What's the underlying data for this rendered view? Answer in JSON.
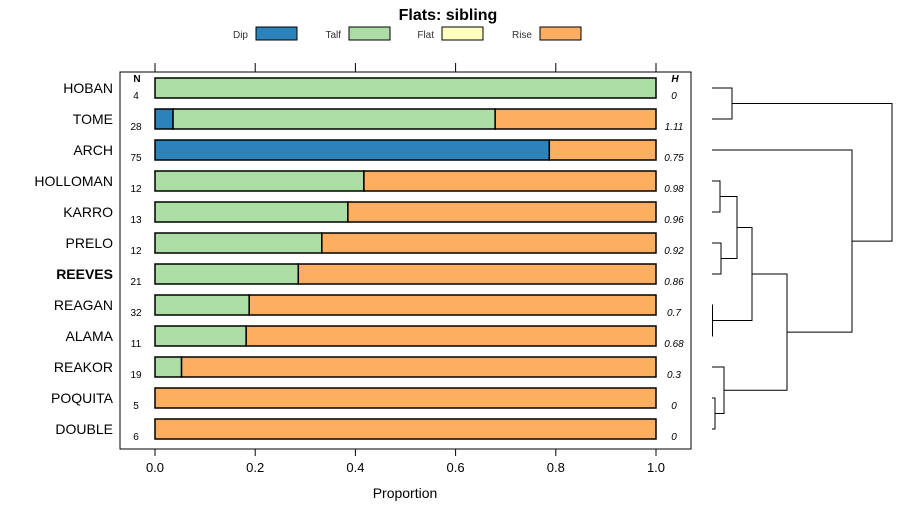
{
  "chart_data": {
    "type": "bar",
    "stacked": true,
    "orientation": "horizontal",
    "title": "Flats: sibling",
    "xlabel": "Proportion",
    "xlim": [
      0,
      1
    ],
    "xticks": [
      "0.0",
      "0.2",
      "0.4",
      "0.6",
      "0.8",
      "1.0"
    ],
    "n_header": "N",
    "h_header": "H",
    "legend": [
      {
        "name": "Dip",
        "color": "#2b83ba"
      },
      {
        "name": "Talf",
        "color": "#abdda4"
      },
      {
        "name": "Flat",
        "color": "#ffffbf"
      },
      {
        "name": "Rise",
        "color": "#fdae61"
      }
    ],
    "rows": [
      {
        "label": "HOBAN",
        "n": "4",
        "h": "0",
        "bold": false,
        "values": [
          0,
          1,
          0,
          0
        ]
      },
      {
        "label": "TOME",
        "n": "28",
        "h": "1.11",
        "bold": false,
        "values": [
          0.036,
          0.643,
          0,
          0.321
        ]
      },
      {
        "label": "ARCH",
        "n": "75",
        "h": "0.75",
        "bold": false,
        "values": [
          0.787,
          0,
          0,
          0.213
        ]
      },
      {
        "label": "HOLLOMAN",
        "n": "12",
        "h": "0.98",
        "bold": false,
        "values": [
          0,
          0.417,
          0,
          0.583
        ]
      },
      {
        "label": "KARRO",
        "n": "13",
        "h": "0.96",
        "bold": false,
        "values": [
          0,
          0.385,
          0,
          0.615
        ]
      },
      {
        "label": "PRELO",
        "n": "12",
        "h": "0.92",
        "bold": false,
        "values": [
          0,
          0.333,
          0,
          0.667
        ]
      },
      {
        "label": "REEVES",
        "n": "21",
        "h": "0.86",
        "bold": true,
        "values": [
          0,
          0.286,
          0,
          0.714
        ]
      },
      {
        "label": "REAGAN",
        "n": "32",
        "h": "0.7",
        "bold": false,
        "values": [
          0,
          0.188,
          0,
          0.812
        ]
      },
      {
        "label": "ALAMA",
        "n": "11",
        "h": "0.68",
        "bold": false,
        "values": [
          0,
          0.182,
          0,
          0.818
        ]
      },
      {
        "label": "REAKOR",
        "n": "19",
        "h": "0.3",
        "bold": false,
        "values": [
          0,
          0.053,
          0,
          0.947
        ]
      },
      {
        "label": "POQUITA",
        "n": "5",
        "h": "0",
        "bold": false,
        "values": [
          0,
          0,
          0,
          1
        ]
      },
      {
        "label": "DOUBLE",
        "n": "6",
        "h": "0",
        "bold": false,
        "values": [
          0,
          0,
          0,
          1
        ]
      }
    ],
    "dendrogram": {
      "merges": [
        {
          "a": 0,
          "b": 1,
          "height": 0.2
        },
        {
          "a": 10,
          "b": 11,
          "height": 0.03
        },
        {
          "a": 9,
          "b": "m1",
          "height": 0.12
        },
        {
          "a": 7,
          "b": 8,
          "height": 0.005
        },
        {
          "a": 3,
          "b": 4,
          "height": 0.08
        },
        {
          "a": 5,
          "b": 6,
          "height": 0.09
        },
        {
          "a": "m4",
          "b": "m5",
          "height": 0.25
        },
        {
          "a": "m6",
          "b": "m3",
          "height": 0.4
        },
        {
          "a": "m7",
          "b": "m2",
          "height": 0.75
        },
        {
          "a": 2,
          "b": "m8",
          "height": 1.4
        },
        {
          "a": "m0",
          "b": "m9",
          "height": 1.8
        }
      ]
    }
  }
}
